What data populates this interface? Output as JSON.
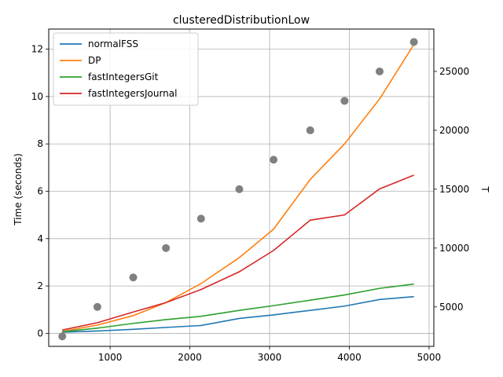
{
  "chart_data": {
    "type": "line",
    "title": "clusteredDistributionLow",
    "xlabel": "",
    "ylabel": "Time (seconds)",
    "y2label": "T",
    "xlim": [
      230,
      5060
    ],
    "ylim": [
      -0.55,
      12.85
    ],
    "y2lim": [
      1650,
      28600
    ],
    "xticks": [
      1000,
      2000,
      3000,
      4000,
      5000
    ],
    "yticks": [
      0,
      2,
      4,
      6,
      8,
      10,
      12
    ],
    "y2ticks": [
      5000,
      10000,
      15000,
      20000,
      25000
    ],
    "grid": true,
    "legend_position": "top-left",
    "x": [
      400,
      840,
      1290,
      1700,
      2140,
      2620,
      3050,
      3510,
      3940,
      4380,
      4810
    ],
    "series": [
      {
        "name": "normalFSS",
        "color": "#1f77b4",
        "values": [
          0.05,
          0.1,
          0.17,
          0.25,
          0.33,
          0.63,
          0.78,
          0.97,
          1.15,
          1.43,
          1.55
        ]
      },
      {
        "name": "DP",
        "color": "#ff7f0e",
        "values": [
          0.08,
          0.35,
          0.75,
          1.3,
          2.1,
          3.2,
          4.4,
          6.5,
          8.0,
          9.9,
          12.2
        ]
      },
      {
        "name": "fastIntegersGit",
        "color": "#2ca02c",
        "values": [
          0.07,
          0.22,
          0.42,
          0.58,
          0.72,
          0.97,
          1.17,
          1.4,
          1.62,
          1.9,
          2.08
        ]
      },
      {
        "name": "fastIntegersJournal",
        "color": "#d62728",
        "values": [
          0.14,
          0.45,
          0.9,
          1.3,
          1.85,
          2.6,
          3.5,
          4.78,
          5.0,
          6.1,
          6.68
        ]
      }
    ],
    "scatter": {
      "name": "T",
      "color": "#808080",
      "axis": "right",
      "x": [
        400,
        840,
        1290,
        1700,
        2140,
        2620,
        3050,
        3510,
        3940,
        4380,
        4810
      ],
      "values": [
        2500,
        5000,
        7500,
        10000,
        12500,
        15000,
        17500,
        20000,
        22500,
        25000,
        27500
      ]
    }
  }
}
